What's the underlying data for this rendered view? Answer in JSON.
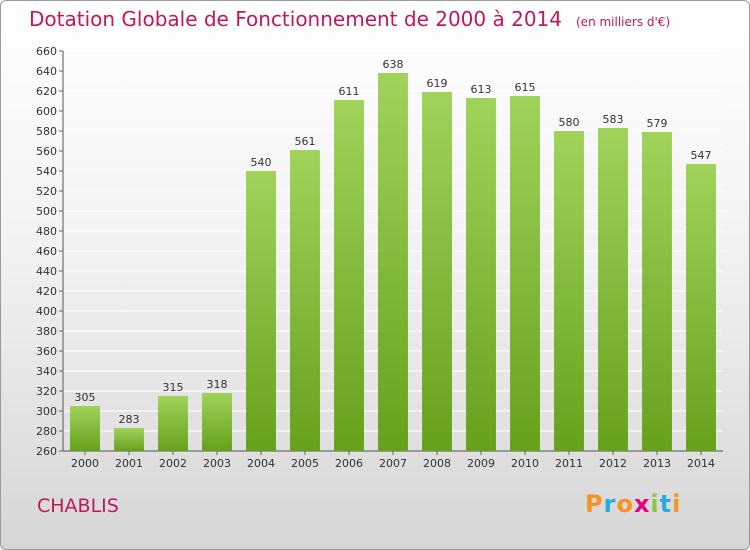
{
  "title": "Dotation Globale de Fonctionnement de 2000 à 2014",
  "unit_note": "(en milliers d'€)",
  "place_name": "CHABLIS",
  "logo": {
    "text": "Proxiti",
    "colors": [
      "#f7931e",
      "#29abe2",
      "#f7931e",
      "#e6007e",
      "#8cc63f",
      "#29abe2",
      "#f7931e"
    ]
  },
  "colors": {
    "bar_top": "#9fd35a",
    "bar_bottom": "#66a11b",
    "title": "#c2185b",
    "grid": "#ffffff"
  },
  "chart_data": {
    "type": "bar",
    "title": "Dotation Globale de Fonctionnement de 2000 à 2014",
    "xlabel": "",
    "ylabel": "",
    "categories": [
      "2000",
      "2001",
      "2002",
      "2003",
      "2004",
      "2005",
      "2006",
      "2007",
      "2008",
      "2009",
      "2010",
      "2011",
      "2012",
      "2013",
      "2014"
    ],
    "values": [
      305,
      283,
      315,
      318,
      540,
      561,
      611,
      638,
      619,
      613,
      615,
      580,
      583,
      579,
      547
    ],
    "ylim": [
      260,
      660
    ],
    "ytick_step": 20,
    "grid": true,
    "legend": "none"
  }
}
